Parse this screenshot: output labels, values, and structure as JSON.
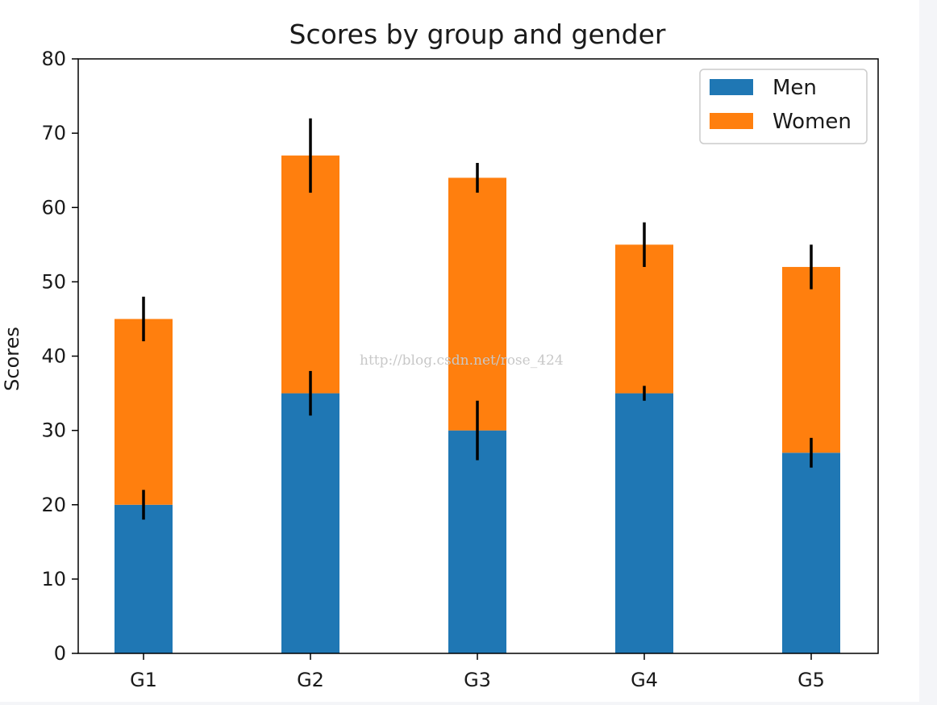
{
  "chart_data": {
    "type": "bar",
    "stacked": true,
    "title": "Scores by group and gender",
    "xlabel": "",
    "ylabel": "Scores",
    "categories": [
      "G1",
      "G2",
      "G3",
      "G4",
      "G5"
    ],
    "ylim": [
      0,
      80
    ],
    "yticks": [
      0,
      10,
      20,
      30,
      40,
      50,
      60,
      70,
      80
    ],
    "grid": false,
    "legend_position": "top-right",
    "series": [
      {
        "name": "Men",
        "values": [
          20,
          35,
          30,
          35,
          27
        ],
        "errors": [
          2,
          3,
          4,
          1,
          2
        ],
        "color": "#1f77b4"
      },
      {
        "name": "Women",
        "values": [
          25,
          32,
          34,
          20,
          25
        ],
        "errors": [
          3,
          5,
          2,
          3,
          3
        ],
        "color": "#ff7f0e"
      }
    ]
  },
  "watermark": "http://blog.csdn.net/rose_424"
}
